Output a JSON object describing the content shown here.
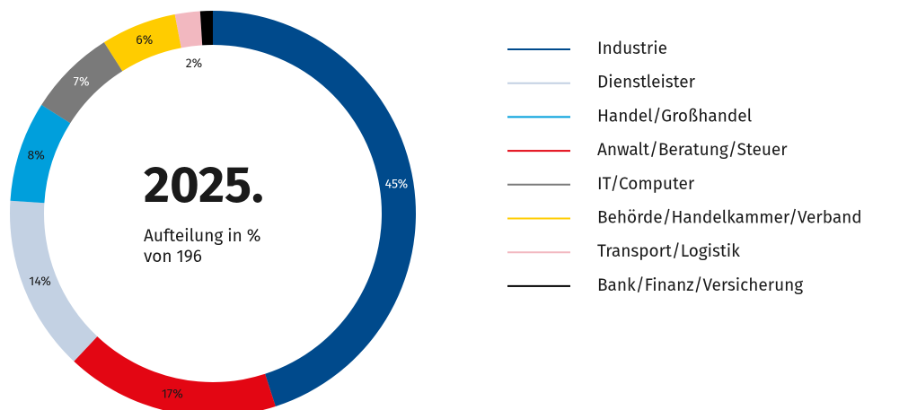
{
  "chart_data": {
    "type": "donut",
    "title": "2025.",
    "subtitle": [
      "Aufteilung in %",
      "von 196"
    ],
    "categories": [
      "Industrie",
      "Anwalt/Beratung/Steuer",
      "Dienstleister",
      "Handel/Großhandel",
      "IT/Computer",
      "Behörde/Handelkammer/Verband",
      "Transport/Logistik",
      "Bank/Finanz/Versicherung"
    ],
    "values": [
      45,
      17,
      14,
      8,
      7,
      6,
      2,
      1
    ],
    "value_labels": [
      "45%",
      "17%",
      "14%",
      "8%",
      "7%",
      "6%",
      "2%",
      null
    ],
    "colors": [
      "#004a8c",
      "#e30613",
      "#c3d1e3",
      "#009fdc",
      "#7a7a7a",
      "#ffcc00",
      "#f2b8c0",
      "#000000"
    ]
  }
}
